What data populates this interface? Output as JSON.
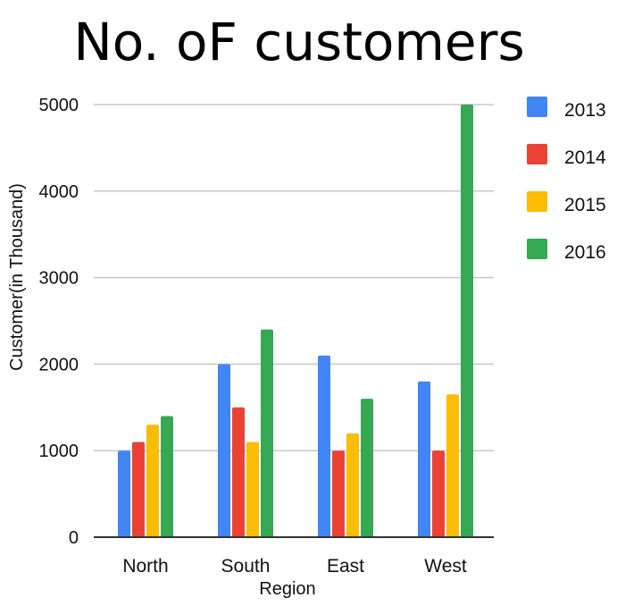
{
  "chart_data": {
    "type": "bar",
    "title": "No. oF customers",
    "xlabel": "Region",
    "ylabel": "Customer(in Thousand)",
    "categories": [
      "North",
      "South",
      "East",
      "West"
    ],
    "series": [
      {
        "name": "2013",
        "color": "#4285F4",
        "values": [
          1000,
          2000,
          2100,
          1800
        ]
      },
      {
        "name": "2014",
        "color": "#EA4335",
        "values": [
          1100,
          1500,
          1000,
          1000
        ]
      },
      {
        "name": "2015",
        "color": "#FBBC04",
        "values": [
          1300,
          1100,
          1200,
          1650
        ]
      },
      {
        "name": "2016",
        "color": "#34A853",
        "values": [
          1400,
          2400,
          1600,
          5000
        ]
      }
    ],
    "ylim": [
      0,
      5000
    ],
    "yticks": [
      0,
      1000,
      2000,
      3000,
      4000,
      5000
    ],
    "grid": true,
    "legend_position": "right"
  }
}
